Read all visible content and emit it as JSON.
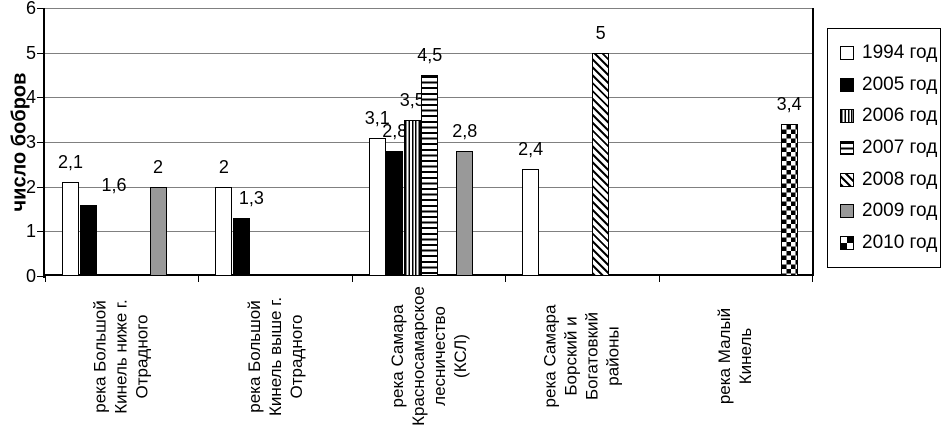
{
  "chart_data": {
    "type": "bar",
    "title": "",
    "ylabel": "число бобров",
    "xlabel": "",
    "ylim": [
      0,
      6
    ],
    "yticks": [
      0,
      1,
      2,
      3,
      4,
      5,
      6
    ],
    "grid": "horizontal",
    "legend_position": "right",
    "decimal_separator": ",",
    "categories": [
      "река Большой\nКинель ниже г.\nОтрадного",
      "река Большой\nКинель выше г.\nОтрадного",
      "река Самара\nКрасносамарское\nлесничество\n(КСЛ)",
      "река Самара\nБорский и\nБогатовкий\nрайоны",
      "река Малый\nКинель"
    ],
    "series": [
      {
        "name": "1994 год",
        "pattern": "plain-white",
        "values": [
          2.1,
          2,
          3.1,
          2.4,
          null
        ]
      },
      {
        "name": "2005 год",
        "pattern": "solid-black",
        "values": [
          1.6,
          1.3,
          2.8,
          null,
          null
        ]
      },
      {
        "name": "2006 год",
        "pattern": "vertical-stripes",
        "values": [
          null,
          null,
          3.5,
          null,
          null
        ]
      },
      {
        "name": "2007 год",
        "pattern": "horizontal-stripes",
        "values": [
          null,
          null,
          4.5,
          null,
          null
        ]
      },
      {
        "name": "2008 год",
        "pattern": "diagonal-stripes",
        "values": [
          null,
          null,
          null,
          5,
          null
        ]
      },
      {
        "name": "2009 год",
        "pattern": "solid-gray",
        "values": [
          2,
          null,
          2.8,
          null,
          null
        ]
      },
      {
        "name": "2010 год",
        "pattern": "checkerboard",
        "values": [
          null,
          null,
          null,
          null,
          3.4
        ]
      }
    ],
    "label_offsets": [
      {
        "series_index": 1,
        "category_index": 0,
        "dx": 26
      },
      {
        "series_index": 1,
        "category_index": 1,
        "dx": 10
      }
    ],
    "colors": {
      "bar_gray": "#999999",
      "bar_black": "#000000",
      "bar_white": "#ffffff",
      "gridline": "#808080"
    }
  }
}
